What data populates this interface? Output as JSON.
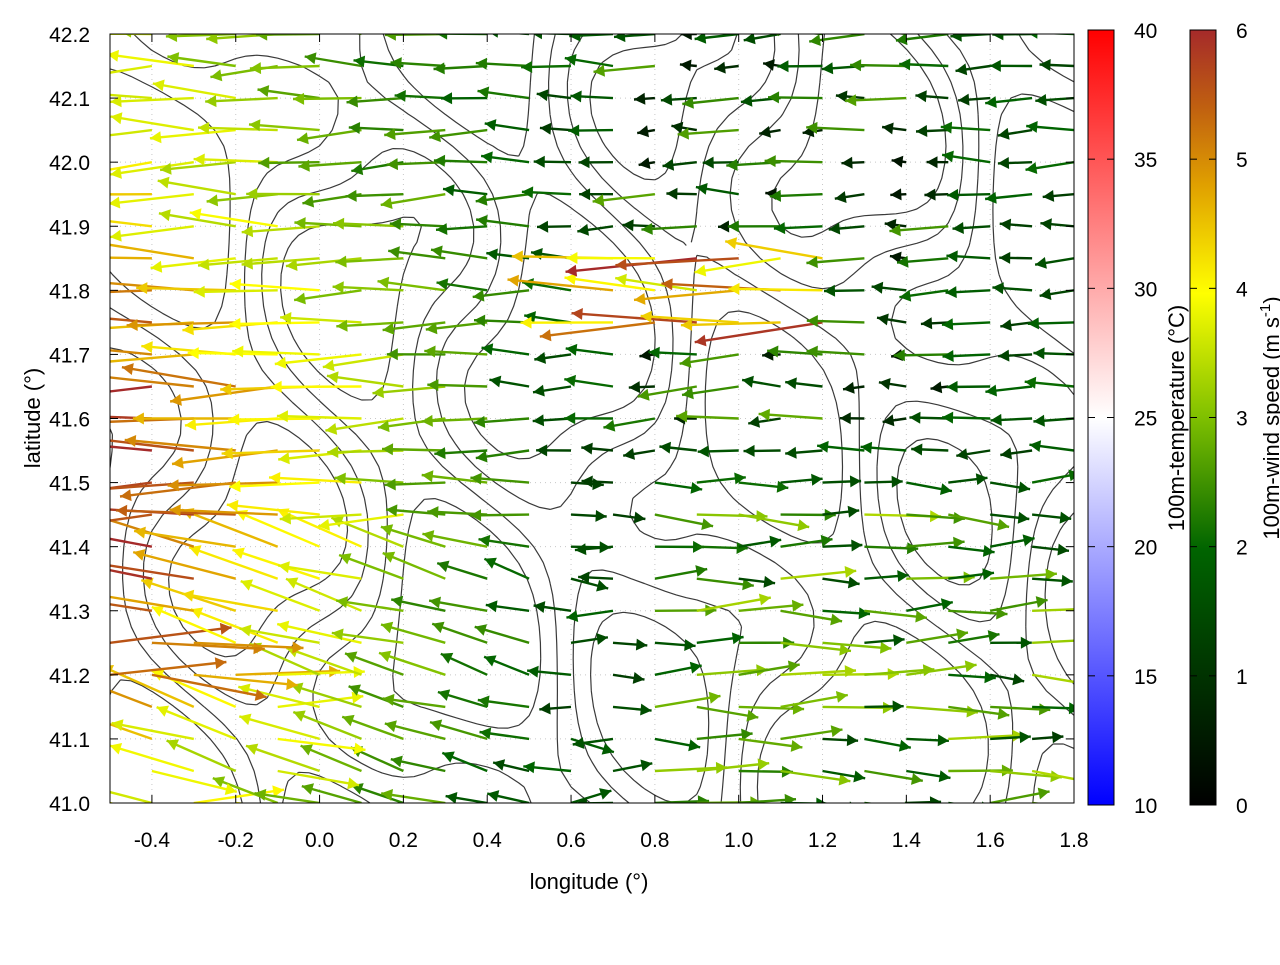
{
  "chart_data": {
    "type": "vector-field",
    "xlabel": "longitude (°)",
    "ylabel": "latitude (°)",
    "xlim": [
      -0.5,
      1.8
    ],
    "ylim": [
      41.0,
      42.2
    ],
    "xticks": [
      -0.4,
      -0.2,
      0.0,
      0.2,
      0.4,
      0.6,
      0.8,
      1.0,
      1.2,
      1.4,
      1.6,
      1.8
    ],
    "yticks": [
      41.0,
      41.1,
      41.2,
      41.3,
      41.4,
      41.5,
      41.6,
      41.7,
      41.8,
      41.9,
      42.0,
      42.1,
      42.2
    ],
    "xtick_labels": [
      "-0.4",
      "-0.2",
      "0.0",
      "0.2",
      "0.4",
      "0.6",
      "0.8",
      "1.0",
      "1.2",
      "1.4",
      "1.6",
      "1.8"
    ],
    "ytick_labels": [
      "41.0",
      "41.1",
      "41.2",
      "41.3",
      "41.4",
      "41.5",
      "41.6",
      "41.7",
      "41.8",
      "41.9",
      "42.0",
      "42.1",
      "42.2"
    ],
    "grid": true,
    "contours": "terrain elevation isolines (gray)",
    "colorbars": [
      {
        "name": "temperature",
        "label": "100m-temperature (°C)",
        "range": [
          10,
          40
        ],
        "ticks": [
          10,
          15,
          20,
          25,
          30,
          35,
          40
        ],
        "tick_labels": [
          "10",
          "15",
          "20",
          "25",
          "30",
          "35",
          "40"
        ],
        "colors": [
          "#0000ff",
          "#ffffff",
          "#ff0000"
        ]
      },
      {
        "name": "wind_speed",
        "label": "100m-wind speed (m s",
        "label_superscript": "-1",
        "label_close": ")",
        "range": [
          0,
          6
        ],
        "ticks": [
          0,
          1,
          2,
          3,
          4,
          5,
          6
        ],
        "tick_labels": [
          "0",
          "1",
          "2",
          "3",
          "4",
          "5",
          "6"
        ],
        "colors": [
          "#000000",
          "#006400",
          "#7fc000",
          "#ffff00",
          "#e0a000",
          "#c06010",
          "#a52a2a"
        ]
      }
    ],
    "wind_field": {
      "grid_lon_step": 0.1,
      "grid_lat_step": 0.05,
      "dominant_direction": "from east (westward arrows)",
      "max_speed_region": "west, lat 41.3-41.8",
      "max_speed": 6,
      "calm_region": "east, lon 0.8-1.6",
      "eastward_flow_region": "south-east, lat 41.0-41.5"
    }
  }
}
